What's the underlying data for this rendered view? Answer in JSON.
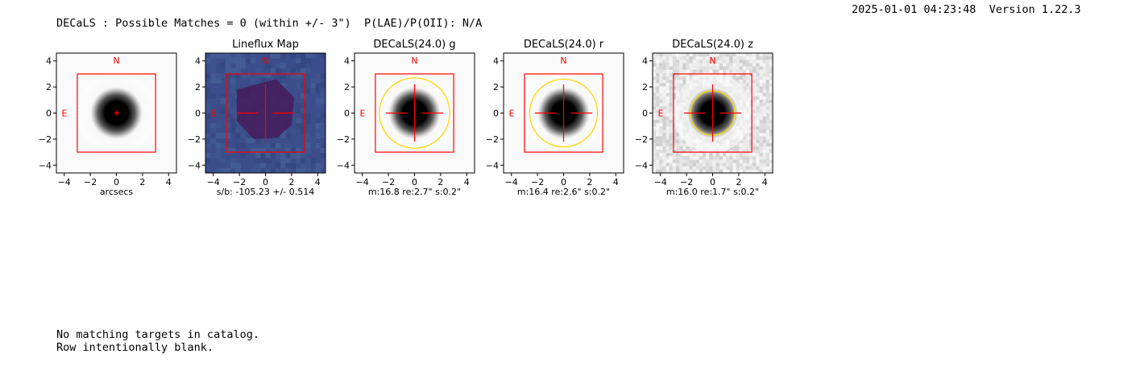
{
  "header": {
    "summary": "DECaLS : Possible Matches = 0 (within +/- 3\")  P(LAE)/P(OII): N/A",
    "timestamp_version": "2025-01-01 04:23:48  Version 1.22.3"
  },
  "notes": {
    "line1": "No matching targets in catalog.",
    "line2": "Row intentionally blank."
  },
  "colors": {
    "marker_red": "#ff0000",
    "ellipse_gold": "#ffd700",
    "lineflux_bg": "#3b4d8a",
    "lineflux_blob": "#45205e"
  },
  "chart_data": [
    {
      "type": "heatmap",
      "title": "",
      "caption": "arcsecs",
      "xlim": [
        -4.6,
        4.6
      ],
      "ylim": [
        -4.6,
        4.6
      ],
      "xticks": [
        -4,
        -2,
        0,
        2,
        4
      ],
      "yticks": [
        -4,
        -2,
        0,
        2,
        4
      ],
      "tick_labels": [
        "−4",
        "−2",
        "0",
        "2",
        "4"
      ],
      "box_half_width": 3,
      "compass": {
        "north": "N",
        "east": "E"
      },
      "marker": "small-plus",
      "source_radius": 1.6,
      "colormap": "gray_r"
    },
    {
      "type": "heatmap",
      "title": "Lineflux Map",
      "caption": "s/b: -105.23 +/- 0.514",
      "xlim": [
        -4.6,
        4.6
      ],
      "ylim": [
        -4.6,
        4.6
      ],
      "xticks": [
        -4,
        -2,
        0,
        2,
        4
      ],
      "yticks": [
        -4,
        -2,
        0,
        2,
        4
      ],
      "tick_labels": [
        "−4",
        "−2",
        "0",
        "2",
        "4"
      ],
      "box_half_width": 3,
      "compass": {
        "north": "N",
        "east": "E"
      },
      "marker": "cross",
      "colormap": "viridis"
    },
    {
      "type": "heatmap",
      "title": "DECaLS(24.0) g",
      "caption": "m:16.8  re:2.7\"  s:0.2\"",
      "xlim": [
        -4.6,
        4.6
      ],
      "ylim": [
        -4.6,
        4.6
      ],
      "xticks": [
        -4,
        -2,
        0,
        2,
        4
      ],
      "yticks": [
        -4,
        -2,
        0,
        2,
        4
      ],
      "tick_labels": [
        "−4",
        "−2",
        "0",
        "2",
        "4"
      ],
      "box_half_width": 3,
      "compass": {
        "north": "N",
        "east": "E"
      },
      "marker": "cross",
      "ellipse_radius": 2.7,
      "source_radius": 1.6,
      "colormap": "gray_r"
    },
    {
      "type": "heatmap",
      "title": "DECaLS(24.0) r",
      "caption": "m:16.4  re:2.6\"  s:0.2\"",
      "xlim": [
        -4.6,
        4.6
      ],
      "ylim": [
        -4.6,
        4.6
      ],
      "xticks": [
        -4,
        -2,
        0,
        2,
        4
      ],
      "yticks": [
        -4,
        -2,
        0,
        2,
        4
      ],
      "tick_labels": [
        "−4",
        "−2",
        "0",
        "2",
        "4"
      ],
      "box_half_width": 3,
      "compass": {
        "north": "N",
        "east": "E"
      },
      "marker": "cross",
      "ellipse_radius": 2.6,
      "source_radius": 1.6,
      "colormap": "gray_r"
    },
    {
      "type": "heatmap",
      "title": "DECaLS(24.0) z",
      "caption": "m:16.0  re:1.7\"  s:0.2\"",
      "xlim": [
        -4.6,
        4.6
      ],
      "ylim": [
        -4.6,
        4.6
      ],
      "xticks": [
        -4,
        -2,
        0,
        2,
        4
      ],
      "yticks": [
        -4,
        -2,
        0,
        2,
        4
      ],
      "tick_labels": [
        "−4",
        "−2",
        "0",
        "2",
        "4"
      ],
      "box_half_width": 3,
      "compass": {
        "north": "N",
        "east": "E"
      },
      "marker": "cross",
      "ellipse_radius": 1.7,
      "source_radius": 1.6,
      "colormap": "gray_r_noisy"
    }
  ]
}
